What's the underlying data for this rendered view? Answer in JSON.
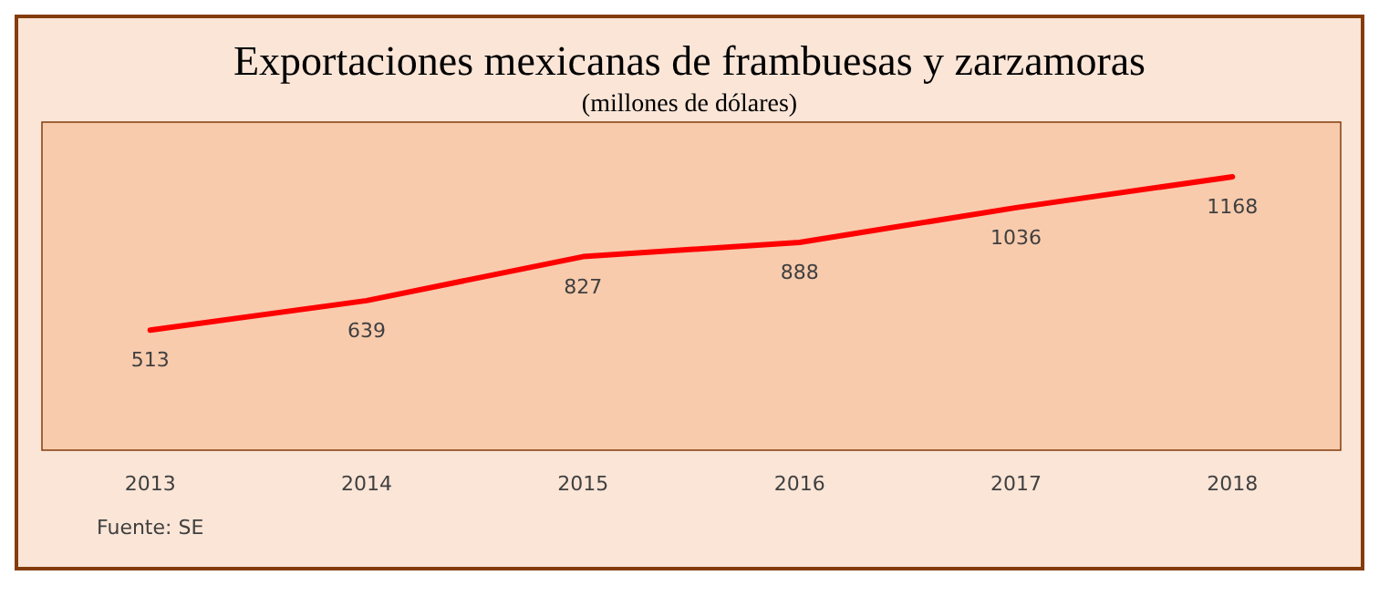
{
  "chart_data": {
    "type": "line",
    "title": "Exportaciones mexicanas de frambuesas y zarzamoras",
    "subtitle": "(millones de dólares)",
    "categories": [
      "2013",
      "2014",
      "2015",
      "2016",
      "2017",
      "2018"
    ],
    "series": [
      {
        "color": "#ff0000",
        "values": [
          513,
          639,
          827,
          888,
          1036,
          1168
        ]
      }
    ],
    "data_labels": true,
    "annotations": [
      "Fuente: SE"
    ],
    "grid": false,
    "marker": "none",
    "line_style": "solid"
  }
}
